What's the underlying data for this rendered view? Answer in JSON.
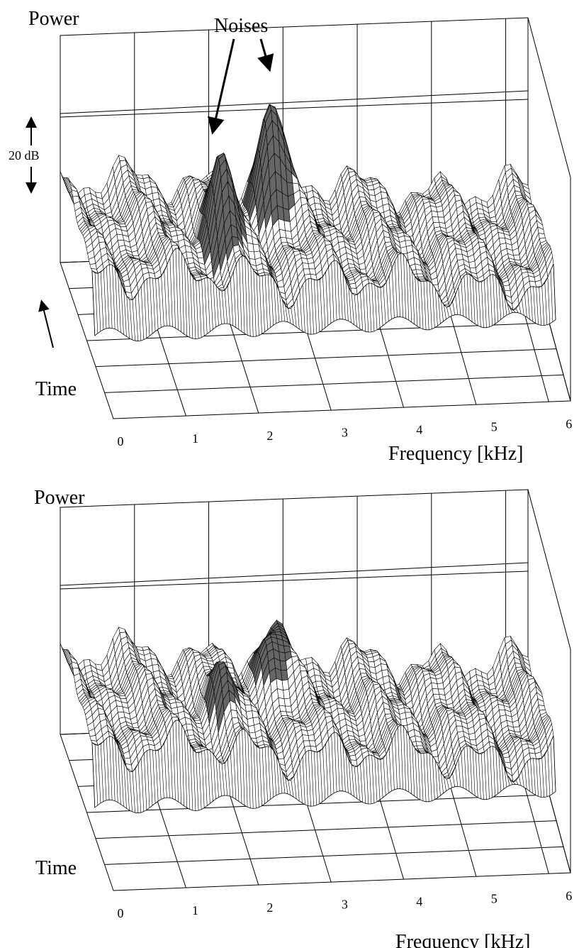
{
  "panels": [
    {
      "power": "Power",
      "noises": "Noises",
      "scale": "20 dB",
      "time": "Time",
      "frequency": "Frequency [kHz]",
      "ticks": [
        0,
        1,
        2,
        3,
        4,
        5,
        6
      ]
    },
    {
      "power": "Power",
      "time": "Time",
      "frequency": "Frequency [kHz]",
      "ticks": [
        0,
        1,
        2,
        3,
        4,
        5,
        6
      ]
    }
  ]
}
